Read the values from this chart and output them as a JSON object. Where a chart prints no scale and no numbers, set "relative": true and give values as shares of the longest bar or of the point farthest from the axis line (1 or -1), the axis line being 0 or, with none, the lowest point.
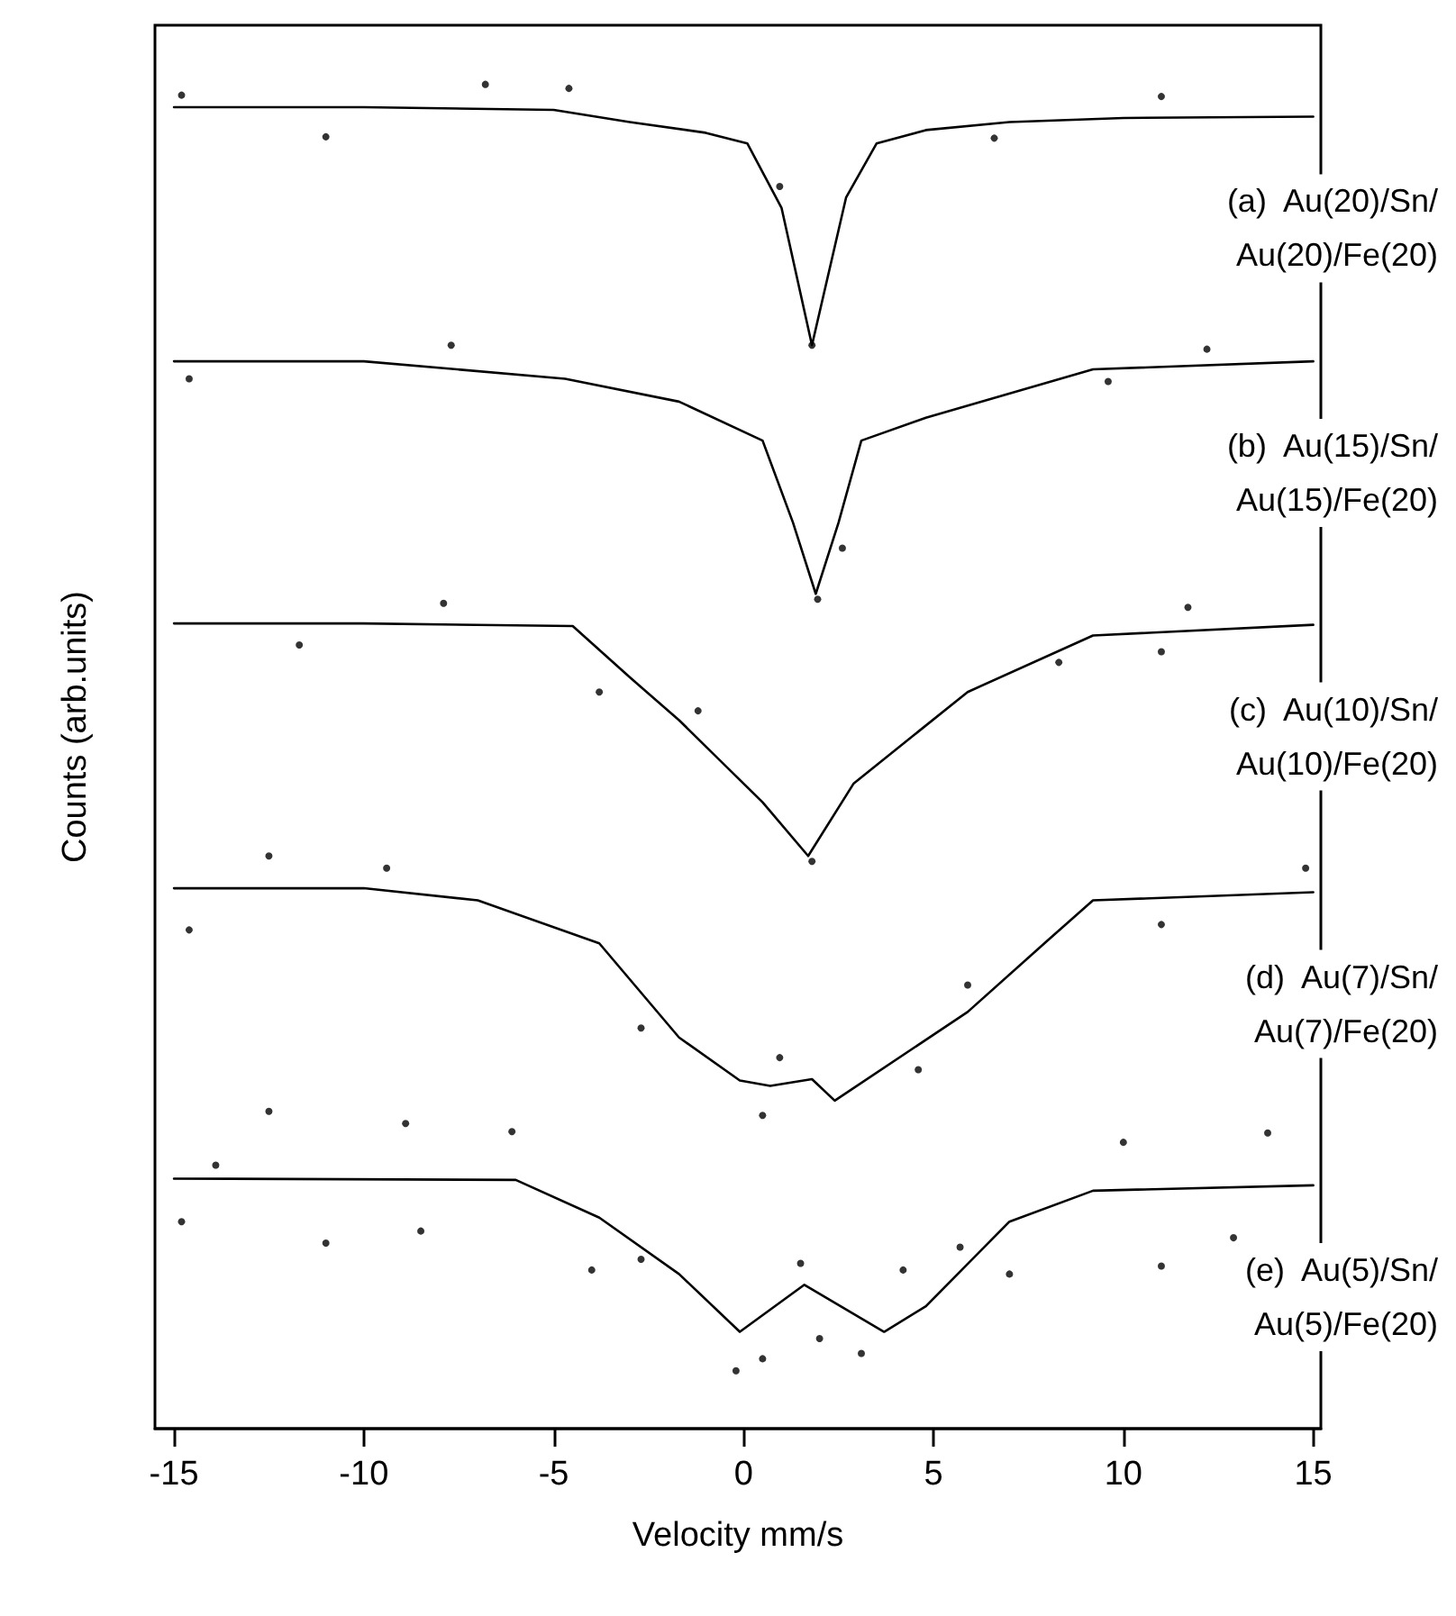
{
  "chart_data": {
    "type": "line",
    "xlabel": "Velocity mm/s",
    "ylabel": "Counts (arb.units)",
    "relative": true,
    "xlim": [
      -15.5,
      15.2
    ],
    "xticks": [
      -15,
      -10,
      -5,
      0,
      5,
      10,
      15
    ],
    "series": [
      {
        "name": "(a)  Au(20)/Sn/\nAu(20)/Fe(20)",
        "color": "#000000",
        "marker": "none",
        "x": [
          -15,
          -10,
          -5,
          -3,
          -1,
          0.1,
          1,
          1.8,
          2.7,
          3.5,
          4.8,
          7,
          10,
          15
        ],
        "values": [
          0.983,
          0.983,
          0.981,
          0.972,
          0.964,
          0.956,
          0.908,
          0.806,
          0.916,
          0.956,
          0.966,
          0.972,
          0.975,
          0.976
        ]
      },
      {
        "type": "scatter",
        "color": "#000000",
        "marker": "circle",
        "x": [
          -14.8,
          -11,
          -6.8,
          -4.6,
          0.95,
          1.8,
          6.6,
          11
        ],
        "values": [
          0.992,
          0.961,
          1.0,
          0.997,
          0.924,
          0.806,
          0.96,
          0.991
        ]
      },
      {
        "name": "(b)  Au(15)/Sn/\nAu(15)/Fe(20)",
        "color": "#000000",
        "marker": "none",
        "x": [
          -15,
          -10,
          -4.7,
          -1.7,
          0.5,
          1.3,
          1.9,
          2.5,
          3.1,
          4.8,
          9.2,
          15
        ],
        "values": [
          0.794,
          0.794,
          0.781,
          0.764,
          0.735,
          0.674,
          0.621,
          0.674,
          0.735,
          0.752,
          0.788,
          0.794
        ]
      },
      {
        "type": "scatter",
        "color": "#000000",
        "marker": "circle",
        "x": [
          -14.6,
          -7.7,
          1.95,
          2.6,
          9.6,
          12.2
        ],
        "values": [
          0.781,
          0.806,
          0.617,
          0.655,
          0.779,
          0.803
        ]
      },
      {
        "name": "(c)  Au(10)/Sn/\nAu(10)/Fe(20)",
        "color": "#000000",
        "marker": "none",
        "x": [
          -15,
          -10,
          -4.5,
          -3,
          -1.7,
          0.5,
          1.7,
          2.9,
          5.9,
          9.2,
          15
        ],
        "values": [
          0.599,
          0.599,
          0.597,
          0.559,
          0.527,
          0.466,
          0.426,
          0.48,
          0.548,
          0.59,
          0.598
        ]
      },
      {
        "type": "scatter",
        "color": "#000000",
        "marker": "circle",
        "x": [
          -11.7,
          -7.9,
          -3.8,
          -1.2,
          1.8,
          8.3,
          11,
          11.7
        ],
        "values": [
          0.583,
          0.614,
          0.548,
          0.534,
          0.422,
          0.57,
          0.578,
          0.611
        ]
      },
      {
        "name": "(d)  Au(7)/Sn/\nAu(7)/Fe(20)",
        "color": "#000000",
        "marker": "none",
        "x": [
          -15,
          -10,
          -7,
          -3.8,
          -1.7,
          -0.1,
          0.7,
          1.8,
          2.4,
          5.9,
          8,
          9.2,
          15
        ],
        "values": [
          0.402,
          0.402,
          0.393,
          0.361,
          0.291,
          0.259,
          0.255,
          0.26,
          0.244,
          0.31,
          0.363,
          0.393,
          0.399
        ]
      },
      {
        "type": "scatter",
        "color": "#000000",
        "marker": "circle",
        "x": [
          -14.6,
          -12.5,
          -9.4,
          -2.7,
          0.5,
          0.95,
          4.6,
          5.9,
          11,
          14.8
        ],
        "values": [
          0.371,
          0.426,
          0.417,
          0.298,
          0.233,
          0.276,
          0.267,
          0.33,
          0.375,
          0.417
        ]
      },
      {
        "name": "(e)  Au(5)/Sn/\nAu(5)/Fe(20)",
        "color": "#000000",
        "marker": "none",
        "x": [
          -15,
          -6,
          -3.8,
          -1.7,
          -0.1,
          1.6,
          3.7,
          4.8,
          7,
          9.2,
          15
        ],
        "values": [
          0.186,
          0.185,
          0.157,
          0.115,
          0.072,
          0.107,
          0.072,
          0.091,
          0.154,
          0.177,
          0.181
        ]
      },
      {
        "type": "scatter",
        "color": "#000000",
        "marker": "circle",
        "x": [
          -14.8,
          -13.9,
          -12.5,
          -11,
          -8.9,
          -8.5,
          -6.1,
          -4,
          -2.7,
          -0.2,
          0.5,
          1.5,
          2,
          3.1,
          4.2,
          5.7,
          7,
          10,
          11,
          12.9,
          13.8
        ],
        "values": [
          0.154,
          0.196,
          0.236,
          0.138,
          0.227,
          0.147,
          0.221,
          0.118,
          0.126,
          0.043,
          0.052,
          0.123,
          0.067,
          0.056,
          0.118,
          0.135,
          0.115,
          0.213,
          0.121,
          0.142,
          0.22
        ]
      }
    ]
  }
}
